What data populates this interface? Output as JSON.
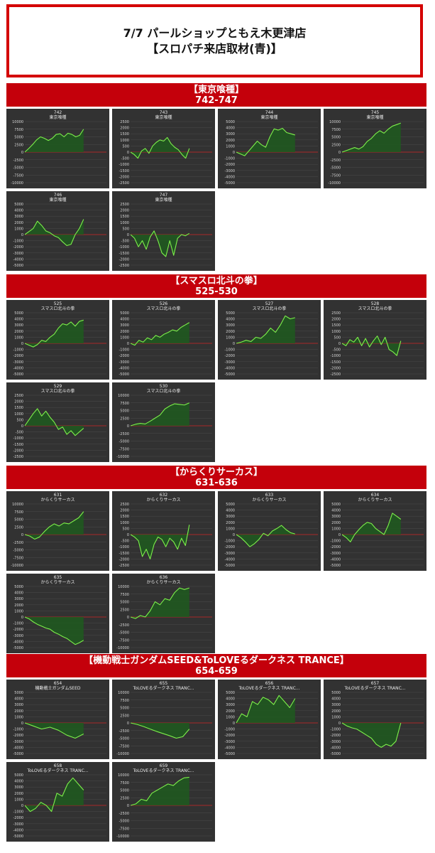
{
  "header": {
    "line1": "7/7 パールショップともえ木更津店",
    "line2": "【スロパチ来店取材(青)】"
  },
  "colors": {
    "accent_red": "#c4000b",
    "line_green": "#7cf04a",
    "fill_green": "#1f5a1f",
    "panel_bg": "#323232",
    "zero_line": "#cc2222"
  },
  "sections": [
    {
      "title": "【東京喰種】",
      "subtitle": "742-747"
    },
    {
      "title": "【スマスロ北斗の拳】",
      "subtitle": "525-530"
    },
    {
      "title": "【からくりサーカス】",
      "subtitle": "631-636"
    },
    {
      "title": "【機動戦士ガンダムSEED&ToLOVEるダークネス TRANCE】",
      "subtitle": "654-659"
    }
  ],
  "chart_data": [
    {
      "type": "area",
      "machine": "742",
      "name": "東京喰種",
      "ylim": [
        -10000,
        10000
      ],
      "yticks": [
        10000,
        7500,
        5000,
        2500,
        0,
        -2500,
        -5000,
        -7500,
        -10000
      ],
      "values": [
        0,
        1200,
        2500,
        4000,
        5000,
        4500,
        3800,
        4500,
        5800,
        6000,
        5000,
        6200,
        5800,
        5000,
        5500,
        7500
      ]
    },
    {
      "type": "area",
      "machine": "743",
      "name": "東京喰種",
      "ylim": [
        -2500,
        2500
      ],
      "yticks": [
        2500,
        2000,
        1500,
        1000,
        500,
        0,
        -500,
        -1000,
        -1500,
        -2000,
        -2500
      ],
      "values": [
        0,
        -200,
        -500,
        100,
        300,
        -100,
        500,
        800,
        1000,
        900,
        1200,
        700,
        400,
        200,
        -200,
        -500,
        300
      ]
    },
    {
      "type": "area",
      "machine": "744",
      "name": "東京喰種",
      "ylim": [
        -5000,
        5000
      ],
      "yticks": [
        5000,
        4000,
        3000,
        2000,
        1000,
        0,
        -1000,
        -2000,
        -3000,
        -4000,
        -5000
      ],
      "values": [
        0,
        -300,
        -600,
        200,
        1000,
        1800,
        1200,
        800,
        2500,
        3800,
        3600,
        3900,
        3200,
        3000,
        2800
      ]
    },
    {
      "type": "area",
      "machine": "745",
      "name": "東京喰種",
      "ylim": [
        -10000,
        10000
      ],
      "yticks": [
        10000,
        7500,
        5000,
        2500,
        0,
        -2500,
        -5000,
        -7500,
        -10000
      ],
      "values": [
        0,
        500,
        1000,
        1500,
        1000,
        1800,
        3500,
        4500,
        6000,
        7000,
        6200,
        7500,
        8500,
        9000,
        9500
      ]
    },
    {
      "type": "area",
      "machine": "746",
      "name": "東京喰種",
      "ylim": [
        -5000,
        5000
      ],
      "yticks": [
        5000,
        4000,
        3000,
        2000,
        1000,
        0,
        -1000,
        -2000,
        -3000,
        -4000,
        -5000
      ],
      "values": [
        0,
        500,
        1000,
        2200,
        1500,
        600,
        300,
        -200,
        -500,
        -1200,
        -1800,
        -1600,
        0,
        1000,
        2500
      ]
    },
    {
      "type": "area",
      "machine": "747",
      "name": "東京喰種",
      "ylim": [
        -2500,
        2500
      ],
      "yticks": [
        2500,
        2000,
        1500,
        1000,
        500,
        0,
        -500,
        -1000,
        -1500,
        -2000,
        -2500
      ],
      "values": [
        0,
        -300,
        -1000,
        -500,
        -1200,
        -200,
        300,
        -500,
        -1500,
        -1800,
        -500,
        -1700,
        -300,
        0,
        -100,
        100
      ]
    },
    {
      "type": "area",
      "machine": "525",
      "name": "スマスロ北斗の拳",
      "ylim": [
        -5000,
        5000
      ],
      "yticks": [
        5000,
        4000,
        3000,
        2000,
        1000,
        0,
        -1000,
        -2000,
        -3000,
        -4000,
        -5000
      ],
      "values": [
        0,
        -300,
        -600,
        -200,
        500,
        300,
        1000,
        1500,
        2500,
        3200,
        3000,
        3500,
        2800,
        3600,
        3800
      ]
    },
    {
      "type": "area",
      "machine": "526",
      "name": "スマスロ北斗の拳",
      "ylim": [
        -5000,
        5000
      ],
      "yticks": [
        5000,
        4000,
        3000,
        2000,
        1000,
        0,
        -1000,
        -2000,
        -3000,
        -4000,
        -5000
      ],
      "values": [
        0,
        -300,
        500,
        200,
        900,
        600,
        1300,
        1000,
        1500,
        1800,
        2200,
        2000,
        2600,
        3000,
        3400
      ]
    },
    {
      "type": "area",
      "machine": "527",
      "name": "スマスロ北斗の拳",
      "ylim": [
        -5000,
        5000
      ],
      "yticks": [
        5000,
        4000,
        3000,
        2000,
        1000,
        0,
        -1000,
        -2000,
        -3000,
        -4000,
        -5000
      ],
      "values": [
        0,
        200,
        500,
        300,
        1000,
        800,
        1500,
        2500,
        1800,
        3000,
        4500,
        4000,
        4200
      ]
    },
    {
      "type": "area",
      "machine": "528",
      "name": "スマスロ北斗の拳",
      "ylim": [
        -2500,
        2500
      ],
      "yticks": [
        2500,
        2000,
        1500,
        1000,
        500,
        0,
        -500,
        -1000,
        -1500,
        -2000,
        -2500
      ],
      "values": [
        0,
        -200,
        300,
        100,
        500,
        -200,
        400,
        -300,
        200,
        600,
        -100,
        500,
        -500,
        -700,
        -1000,
        200
      ]
    },
    {
      "type": "area",
      "machine": "529",
      "name": "スマスロ北斗の拳",
      "ylim": [
        -2500,
        2500
      ],
      "yticks": [
        2500,
        2000,
        1500,
        1000,
        500,
        0,
        -500,
        -1000,
        -1500,
        -2000,
        -2500
      ],
      "values": [
        0,
        500,
        1000,
        1400,
        800,
        1200,
        700,
        300,
        -300,
        -100,
        -700,
        -400,
        -800,
        -500,
        -200
      ]
    },
    {
      "type": "area",
      "machine": "530",
      "name": "スマスロ北斗の拳",
      "ylim": [
        -10000,
        10000
      ],
      "yticks": [
        10000,
        7500,
        5000,
        2500,
        0,
        -2500,
        -5000,
        -7500,
        -10000
      ],
      "values": [
        0,
        500,
        800,
        600,
        1500,
        2500,
        3500,
        5500,
        6500,
        7200,
        7000,
        6800,
        7500
      ]
    },
    {
      "type": "area",
      "machine": "631",
      "name": "からくりサーカス",
      "ylim": [
        -10000,
        10000
      ],
      "yticks": [
        10000,
        7500,
        5000,
        2500,
        0,
        -2500,
        -5000,
        -7500,
        -10000
      ],
      "values": [
        0,
        -500,
        -1500,
        -800,
        1000,
        2500,
        3500,
        2800,
        3800,
        3500,
        4500,
        5500,
        7500
      ]
    },
    {
      "type": "area",
      "machine": "632",
      "name": "からくりサーカス",
      "ylim": [
        -2500,
        2500
      ],
      "yticks": [
        2500,
        2000,
        1500,
        1000,
        500,
        0,
        -500,
        -1000,
        -1500,
        -2000,
        -2500
      ],
      "values": [
        0,
        -200,
        -500,
        -1800,
        -1200,
        -2000,
        -800,
        -200,
        -400,
        -1000,
        -300,
        -600,
        -1200,
        -300,
        -900,
        800
      ]
    },
    {
      "type": "area",
      "machine": "633",
      "name": "からくりサーカス",
      "ylim": [
        -5000,
        5000
      ],
      "yticks": [
        5000,
        4000,
        3000,
        2000,
        1000,
        0,
        -1000,
        -2000,
        -3000,
        -4000,
        -5000
      ],
      "values": [
        0,
        -500,
        -1200,
        -2000,
        -1500,
        -800,
        200,
        -200,
        600,
        1000,
        1500,
        800,
        300,
        100
      ]
    },
    {
      "type": "area",
      "machine": "634",
      "name": "からくりサーカス",
      "ylim": [
        -5000,
        5000
      ],
      "yticks": [
        5000,
        4000,
        3000,
        2000,
        1000,
        0,
        -1000,
        -2000,
        -3000,
        -4000,
        -5000
      ],
      "values": [
        0,
        -500,
        -1200,
        0,
        800,
        1500,
        2000,
        1800,
        1000,
        500,
        0,
        1500,
        3500,
        3000,
        2500
      ]
    },
    {
      "type": "area",
      "machine": "635",
      "name": "からくりサーカス",
      "ylim": [
        -5000,
        5000
      ],
      "yticks": [
        5000,
        4000,
        3000,
        2000,
        1000,
        0,
        -1000,
        -2000,
        -3000,
        -4000,
        -5000
      ],
      "values": [
        0,
        -300,
        -800,
        -1200,
        -1500,
        -1800,
        -2000,
        -2500,
        -2800,
        -3200,
        -3500,
        -4000,
        -4500,
        -4200,
        -3800
      ]
    },
    {
      "type": "area",
      "machine": "636",
      "name": "からくりサーカス",
      "ylim": [
        -10000,
        10000
      ],
      "yticks": [
        10000,
        7500,
        5000,
        2500,
        0,
        -2500,
        -5000,
        -7500,
        -10000
      ],
      "values": [
        0,
        -500,
        500,
        0,
        2000,
        5000,
        4000,
        6000,
        5500,
        8000,
        9500,
        9000,
        9500
      ]
    },
    {
      "type": "area",
      "machine": "654",
      "name": "機動戦士ガンダムSEED",
      "ylim": [
        -5000,
        5000
      ],
      "yticks": [
        5000,
        4000,
        3000,
        2000,
        1000,
        0,
        -1000,
        -2000,
        -3000,
        -4000,
        -5000
      ],
      "values": [
        0,
        -500,
        -1000,
        -700,
        -1200,
        -2000,
        -2500,
        -1800
      ]
    },
    {
      "type": "area",
      "machine": "655",
      "name": "ToLOVEるダークネス TRANC...",
      "ylim": [
        -10000,
        10000
      ],
      "yticks": [
        10000,
        7500,
        5000,
        2500,
        0,
        -2500,
        -5000,
        -7500,
        -10000
      ],
      "values": [
        0,
        -500,
        -1200,
        -2000,
        -2800,
        -3500,
        -4200,
        -5000,
        -4500,
        -2000
      ]
    },
    {
      "type": "area",
      "machine": "656",
      "name": "ToLOVEるダークネス TRANC...",
      "ylim": [
        -5000,
        5000
      ],
      "yticks": [
        5000,
        4000,
        3000,
        2000,
        1000,
        0,
        -1000,
        -2000,
        -3000,
        -4000,
        -5000
      ],
      "values": [
        0,
        1500,
        1000,
        3500,
        3000,
        4200,
        3800,
        3000,
        4500,
        3500,
        2500,
        4000
      ]
    },
    {
      "type": "area",
      "machine": "657",
      "name": "ToLOVEるダークネス TRANC...",
      "ylim": [
        -5000,
        5000
      ],
      "yticks": [
        5000,
        4000,
        3000,
        2000,
        1000,
        0,
        -1000,
        -2000,
        -3000,
        -4000,
        -5000
      ],
      "values": [
        0,
        -500,
        -800,
        -1000,
        -1500,
        -2000,
        -2500,
        -3500,
        -4000,
        -3500,
        -3800,
        -3000,
        0
      ]
    },
    {
      "type": "area",
      "machine": "658",
      "name": "ToLOVEるダークネス TRANC...",
      "ylim": [
        -5000,
        5000
      ],
      "yticks": [
        5000,
        4000,
        3000,
        2000,
        1000,
        0,
        -1000,
        -2000,
        -3000,
        -4000,
        -5000
      ],
      "values": [
        0,
        -1000,
        -500,
        500,
        0,
        -1000,
        2000,
        1500,
        3500,
        4500,
        3500,
        2500
      ]
    },
    {
      "type": "area",
      "machine": "659",
      "name": "ToLOVEるダークネス TRANC...",
      "ylim": [
        -10000,
        10000
      ],
      "yticks": [
        10000,
        7500,
        5000,
        2500,
        0,
        -2500,
        -5000,
        -7500,
        -10000
      ],
      "values": [
        0,
        500,
        2000,
        1500,
        4000,
        5000,
        6000,
        7000,
        6500,
        8000,
        9000,
        9200
      ]
    }
  ]
}
